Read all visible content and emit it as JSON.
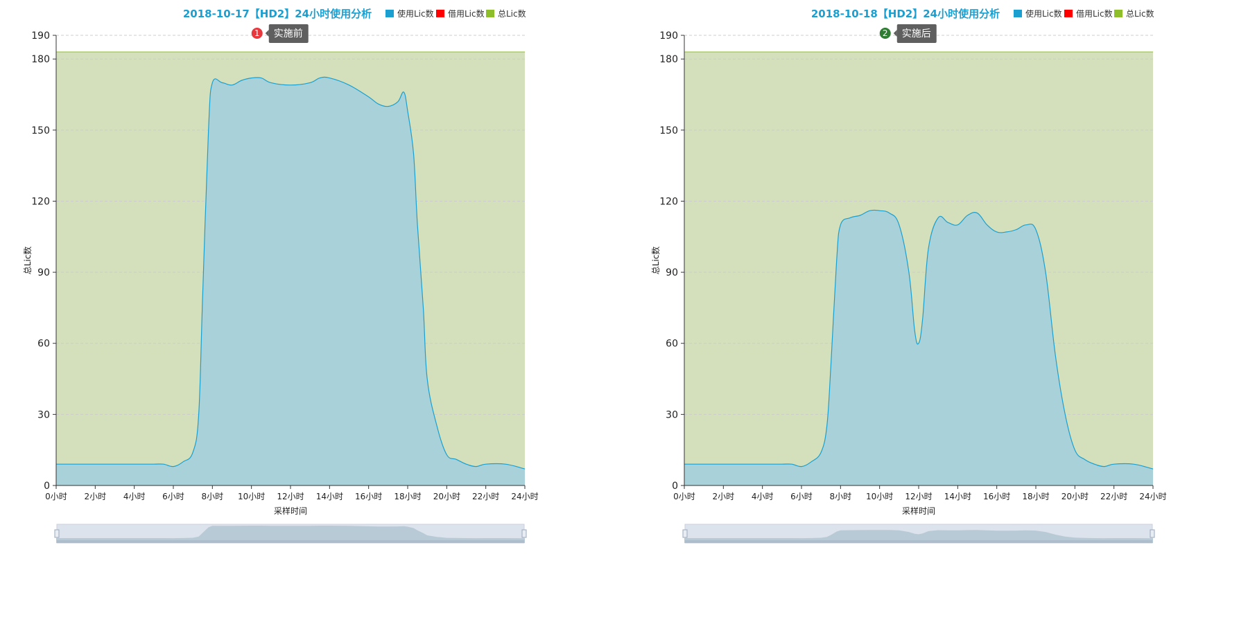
{
  "colors": {
    "used": "#1a9fd0",
    "borrowed": "#ff0000",
    "total": "#8fbe2b",
    "title": "#1a9fd0",
    "grid": "#cccccc",
    "total_fill": "#d4e0bb",
    "used_fill": "#a9d1d9",
    "badge_red": "#e8383d",
    "badge_green": "#2e7d32",
    "tooltip_bg": "#5f5f5f",
    "zoom_bg": "#dde3ec",
    "zoom_shape": "#b9cad7"
  },
  "chart_data": [
    {
      "type": "area",
      "title": "2018-10-17【HD2】24小时使用分析",
      "legend": [
        "使用Lic数",
        "借用Lic数",
        "总Lic数"
      ],
      "legend_position": "top-right",
      "ylabel": "总Lic数",
      "xlabel": "采样时间",
      "ylim": [
        0,
        190
      ],
      "yticks": [
        0,
        30,
        60,
        90,
        120,
        150,
        180,
        190
      ],
      "xlim": [
        0,
        24
      ],
      "xticks": [
        "0小时",
        "2小时",
        "4小时",
        "6小时",
        "8小时",
        "10小时",
        "12小时",
        "14小时",
        "16小时",
        "18小时",
        "20小时",
        "22小时",
        "24小时"
      ],
      "grid": true,
      "annotation": {
        "badge": "1",
        "text": "实施前",
        "x": 10.5,
        "y": 190,
        "color": "badge_red"
      },
      "series": [
        {
          "name": "总Lic数",
          "x": [
            0,
            24
          ],
          "values": [
            183,
            183
          ]
        },
        {
          "name": "借用Lic数",
          "x": [],
          "values": []
        },
        {
          "name": "使用Lic数",
          "x": [
            0,
            1,
            2,
            3,
            4,
            5,
            5.5,
            6,
            6.5,
            7,
            7.3,
            7.5,
            7.8,
            8,
            8.5,
            9,
            9.5,
            10,
            10.5,
            11,
            12,
            13,
            13.5,
            14,
            15,
            16,
            16.5,
            17,
            17.5,
            17.8,
            18,
            18.3,
            18.5,
            18.8,
            19,
            19.5,
            20,
            20.5,
            21,
            21.5,
            22,
            23,
            24
          ],
          "values": [
            9,
            9,
            9,
            9,
            9,
            9,
            9,
            8,
            10,
            14,
            30,
            80,
            150,
            170,
            170,
            169,
            171,
            172,
            172,
            170,
            169,
            170,
            172,
            172,
            169,
            164,
            161,
            160,
            162,
            166,
            158,
            140,
            110,
            75,
            45,
            25,
            13,
            11,
            9,
            8,
            9,
            9,
            7
          ]
        }
      ]
    },
    {
      "type": "area",
      "title": "2018-10-18【HD2】24小时使用分析",
      "legend": [
        "使用Lic数",
        "借用Lic数",
        "总Lic数"
      ],
      "legend_position": "top-right",
      "ylabel": "总Lic数",
      "xlabel": "采样时间",
      "ylim": [
        0,
        190
      ],
      "yticks": [
        0,
        30,
        60,
        90,
        120,
        150,
        180,
        190
      ],
      "xlim": [
        0,
        24
      ],
      "xticks": [
        "0小时",
        "2小时",
        "4小时",
        "6小时",
        "8小时",
        "10小时",
        "12小时",
        "14小时",
        "16小时",
        "18小时",
        "20小时",
        "22小时",
        "24小时"
      ],
      "grid": true,
      "annotation": {
        "badge": "2",
        "text": "实施后",
        "x": 10.5,
        "y": 190,
        "color": "badge_green"
      },
      "series": [
        {
          "name": "总Lic数",
          "x": [
            0,
            24
          ],
          "values": [
            183,
            183
          ]
        },
        {
          "name": "借用Lic数",
          "x": [],
          "values": []
        },
        {
          "name": "使用Lic数",
          "x": [
            0,
            1,
            2,
            3,
            4,
            5,
            5.5,
            6,
            6.5,
            7,
            7.3,
            7.5,
            7.8,
            8,
            8.5,
            9,
            9.5,
            10,
            10.5,
            11,
            11.5,
            11.8,
            12,
            12.2,
            12.5,
            13,
            13.5,
            14,
            14.5,
            15,
            15.5,
            16,
            16.5,
            17,
            17.5,
            18,
            18.5,
            19,
            19.5,
            20,
            20.5,
            21,
            21.5,
            22,
            23,
            24
          ],
          "values": [
            9,
            9,
            9,
            9,
            9,
            9,
            9,
            8,
            10,
            14,
            25,
            50,
            95,
            110,
            113,
            114,
            116,
            116,
            115,
            110,
            90,
            65,
            60,
            70,
            100,
            113,
            111,
            110,
            114,
            115,
            110,
            107,
            107,
            108,
            110,
            108,
            90,
            55,
            30,
            15,
            11,
            9,
            8,
            9,
            9,
            7
          ]
        }
      ]
    }
  ]
}
